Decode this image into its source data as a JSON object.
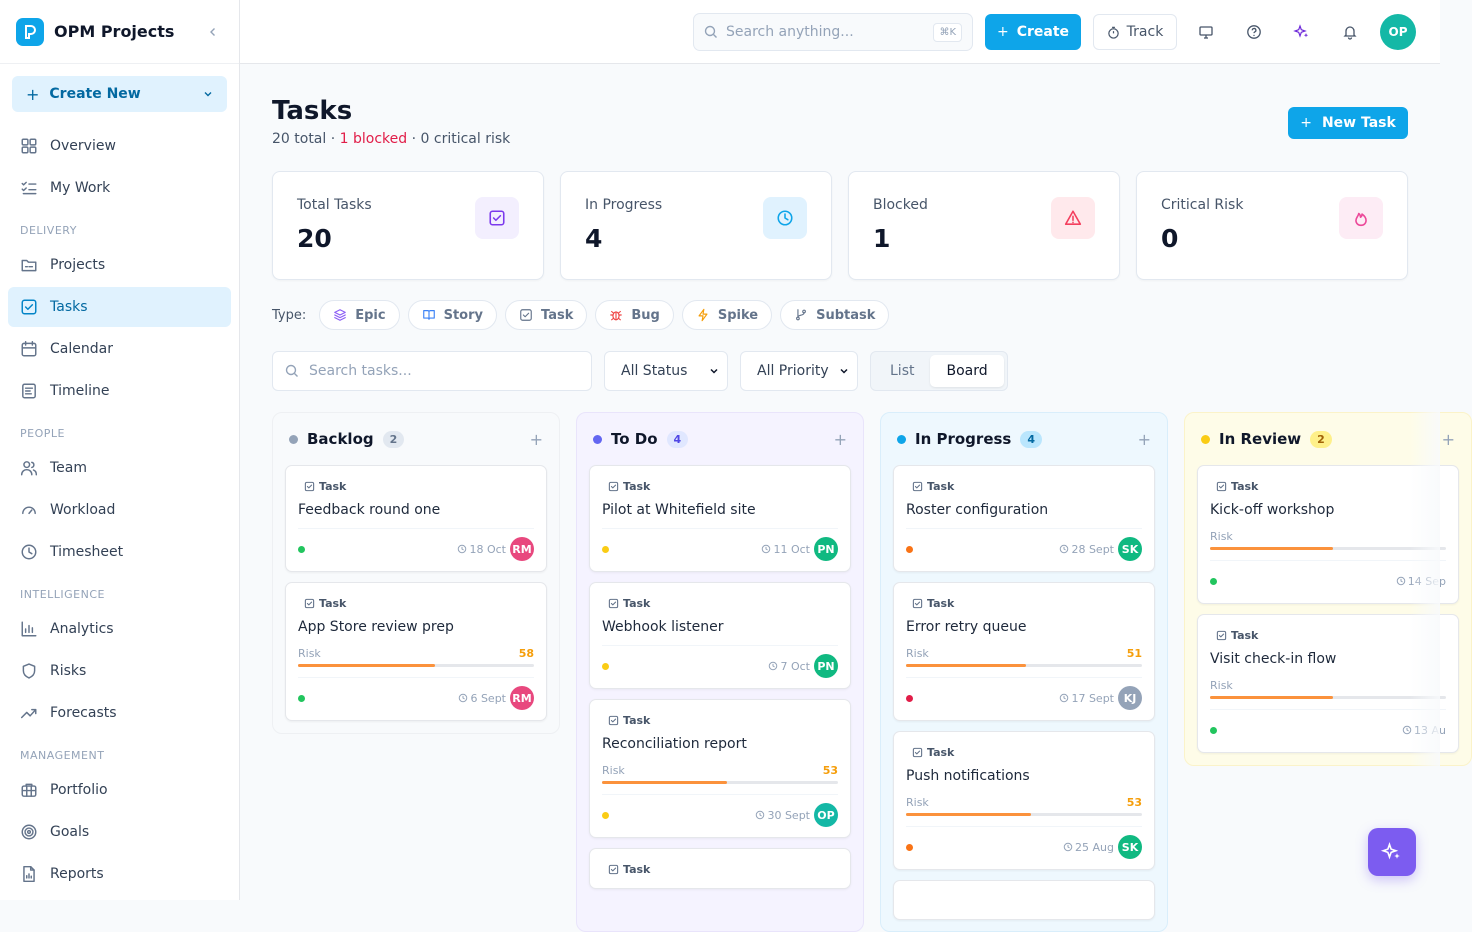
{
  "app": {
    "name": "OPM Projects"
  },
  "sidebar": {
    "create_new": "Create New",
    "items": [
      {
        "label": "Overview",
        "icon": "grid-icon"
      },
      {
        "label": "My Work",
        "icon": "list-check-icon"
      }
    ],
    "sections": [
      {
        "title": "DELIVERY",
        "items": [
          {
            "label": "Projects",
            "icon": "folder-icon"
          },
          {
            "label": "Tasks",
            "icon": "checkbox-icon",
            "active": true
          },
          {
            "label": "Calendar",
            "icon": "calendar-icon"
          },
          {
            "label": "Timeline",
            "icon": "timeline-icon"
          }
        ]
      },
      {
        "title": "PEOPLE",
        "items": [
          {
            "label": "Team",
            "icon": "users-icon"
          },
          {
            "label": "Workload",
            "icon": "gauge-icon"
          },
          {
            "label": "Timesheet",
            "icon": "clock-icon"
          }
        ]
      },
      {
        "title": "INTELLIGENCE",
        "items": [
          {
            "label": "Analytics",
            "icon": "bar-chart-icon"
          },
          {
            "label": "Risks",
            "icon": "shield-icon"
          },
          {
            "label": "Forecasts",
            "icon": "trend-icon"
          }
        ]
      },
      {
        "title": "MANAGEMENT",
        "items": [
          {
            "label": "Portfolio",
            "icon": "briefcase-icon"
          },
          {
            "label": "Goals",
            "icon": "target-icon"
          },
          {
            "label": "Reports",
            "icon": "report-icon"
          }
        ]
      }
    ]
  },
  "topbar": {
    "search_placeholder": "Search anything...",
    "shortcut": "⌘K",
    "create_label": "Create",
    "track_label": "Track",
    "avatar": "OP"
  },
  "page": {
    "title": "Tasks",
    "sub_total": "20 total",
    "sub_blocked": "1 blocked",
    "sub_critical": "0 critical risk",
    "new_task": "New Task"
  },
  "stats": [
    {
      "label": "Total Tasks",
      "value": "20",
      "icon": "checkbox-icon",
      "color": "#7c3aed",
      "bg": "#f3effe"
    },
    {
      "label": "In Progress",
      "value": "4",
      "icon": "clock-icon",
      "color": "#0ea5e9",
      "bg": "#e0f2fe"
    },
    {
      "label": "Blocked",
      "value": "1",
      "icon": "warning-icon",
      "color": "#f43f5e",
      "bg": "#ffe9ec"
    },
    {
      "label": "Critical Risk",
      "value": "0",
      "icon": "flame-icon",
      "color": "#ec4899",
      "bg": "#fdecf5"
    }
  ],
  "type_filter": {
    "label": "Type:",
    "chips": [
      {
        "label": "Epic",
        "icon": "layers-icon",
        "color": "#8b5cf6"
      },
      {
        "label": "Story",
        "icon": "book-icon",
        "color": "#3b82f6"
      },
      {
        "label": "Task",
        "icon": "checkbox-icon",
        "color": "#64748b"
      },
      {
        "label": "Bug",
        "icon": "bug-icon",
        "color": "#ef4444"
      },
      {
        "label": "Spike",
        "icon": "bolt-icon",
        "color": "#f59e0b"
      },
      {
        "label": "Subtask",
        "icon": "branch-icon",
        "color": "#64748b"
      }
    ]
  },
  "filters": {
    "search_placeholder": "Search tasks...",
    "status": "All Status",
    "priority": "All Priority",
    "view_list": "List",
    "view_board": "Board"
  },
  "board": {
    "columns": [
      {
        "title": "Backlog",
        "count": "2",
        "dot": "#94a3b8",
        "bg": "#f8fafc",
        "border": "#eef0f3",
        "count_bg": "#e2e8f0",
        "count_color": "#64748b",
        "cards": [
          {
            "type": "Task",
            "title": "Feedback round one",
            "priority": "#22c55e",
            "due": "18 Oct",
            "assignee": "RM",
            "avatar_color": "#e8487e"
          },
          {
            "type": "Task",
            "title": "App Store review prep",
            "risk_label": "Risk",
            "risk": 58,
            "priority": "#22c55e",
            "due": "6 Sept",
            "assignee": "RM",
            "avatar_color": "#e8487e"
          }
        ]
      },
      {
        "title": "To Do",
        "count": "4",
        "dot": "#6366f1",
        "bg": "#f5f3ff",
        "border": "#e9e4fb",
        "count_bg": "#e0e7ff",
        "count_color": "#4f46e5",
        "cards": [
          {
            "type": "Task",
            "title": "Pilot at Whitefield site",
            "priority": "#facc15",
            "due": "11 Oct",
            "assignee": "PN",
            "avatar_color": "#10b981"
          },
          {
            "type": "Task",
            "title": "Webhook listener",
            "priority": "#facc15",
            "due": "7 Oct",
            "assignee": "PN",
            "avatar_color": "#10b981"
          },
          {
            "type": "Task",
            "title": "Reconciliation report",
            "risk_label": "Risk",
            "risk": 53,
            "priority": "#facc15",
            "due": "30 Sept",
            "assignee": "OP",
            "avatar_color": "#14b8a6"
          },
          {
            "type": "Task",
            "title": ""
          }
        ]
      },
      {
        "title": "In Progress",
        "count": "4",
        "dot": "#0ea5e9",
        "bg": "#eef8fe",
        "border": "#d9eefb",
        "count_bg": "#bae6fd",
        "count_color": "#0369a1",
        "cards": [
          {
            "type": "Task",
            "title": "Roster configuration",
            "priority": "#f97316",
            "due": "28 Sept",
            "assignee": "SK",
            "avatar_color": "#10b981"
          },
          {
            "type": "Task",
            "title": "Error retry queue",
            "risk_label": "Risk",
            "risk": 51,
            "priority": "#e11d48",
            "due": "17 Sept",
            "assignee": "KJ",
            "avatar_color": "#94a3b8"
          },
          {
            "type": "Task",
            "title": "Push notifications",
            "risk_label": "Risk",
            "risk": 53,
            "priority": "#f97316",
            "due": "25 Aug",
            "assignee": "SK",
            "avatar_color": "#10b981"
          },
          {
            "type": "",
            "title": ""
          }
        ]
      },
      {
        "title": "In Review",
        "count": "2",
        "dot": "#facc15",
        "bg": "#fefce8",
        "border": "#fbf3c9",
        "count_bg": "#fef08a",
        "count_color": "#a16207",
        "cards": [
          {
            "type": "Task",
            "title": "Kick-off workshop",
            "risk_label": "Risk",
            "risk": 52,
            "priority": "#22c55e",
            "due": "14 Sep",
            "assignee": "",
            "avatar_color": "#10b981"
          },
          {
            "type": "Task",
            "title": "Visit check-in flow",
            "risk_label": "Risk",
            "risk": 52,
            "priority": "#22c55e",
            "due": "13 Au",
            "assignee": "",
            "avatar_color": "#10b981"
          }
        ]
      }
    ]
  }
}
